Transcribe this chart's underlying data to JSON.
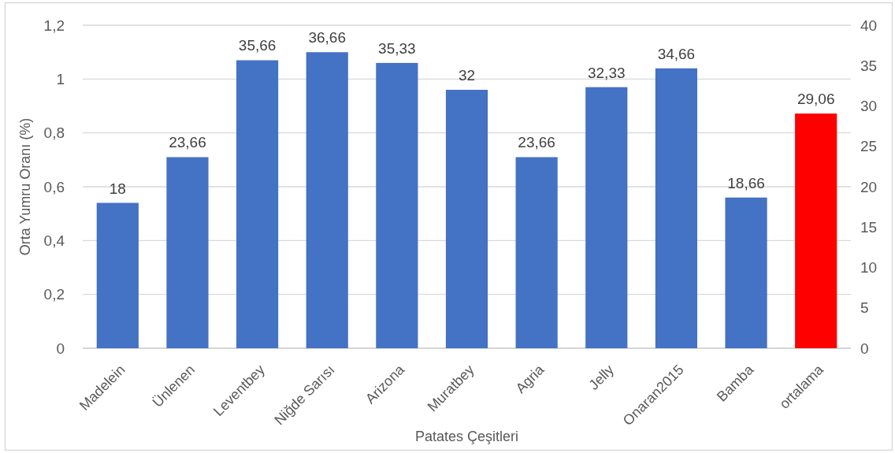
{
  "chart_data": {
    "type": "bar",
    "xlabel": "Patates Çeşitleri",
    "ylabel": "Orta Yumru Oranı (%)",
    "categories": [
      "Madelein",
      "Ünlenen",
      "Leventbey",
      "Niğde Sarısı",
      "Arizona",
      "Muratbey",
      "Agria",
      "Jelly",
      "Onaran2015",
      "Bamba",
      "ortalama"
    ],
    "series": [
      {
        "axis": "y2",
        "values": [
          18,
          23.66,
          35.66,
          36.66,
          35.33,
          32,
          23.66,
          32.33,
          34.66,
          18.66,
          29.06
        ],
        "colors": [
          "#4472c4",
          "#4472c4",
          "#4472c4",
          "#4472c4",
          "#4472c4",
          "#4472c4",
          "#4472c4",
          "#4472c4",
          "#4472c4",
          "#4472c4",
          "#ff0000"
        ],
        "value_labels": [
          "18",
          "23,66",
          "35,66",
          "36,66",
          "35,33",
          "32",
          "23,66",
          "32,33",
          "34,66",
          "18,66",
          "29,06"
        ]
      }
    ],
    "ylim": [
      0,
      1.2
    ],
    "yticks": [
      0,
      {
        "value": 0.2,
        "label": "0,2"
      },
      {
        "value": 0.4,
        "label": "0,4"
      },
      {
        "value": 0.6,
        "label": "0,6"
      },
      {
        "value": 0.8,
        "label": "0,8"
      },
      1,
      {
        "value": 1.2,
        "label": "1,2"
      }
    ],
    "y2lim": [
      0,
      40
    ],
    "y2ticks": [
      0,
      5,
      10,
      15,
      20,
      25,
      30,
      35,
      40
    ],
    "grid": "y"
  }
}
